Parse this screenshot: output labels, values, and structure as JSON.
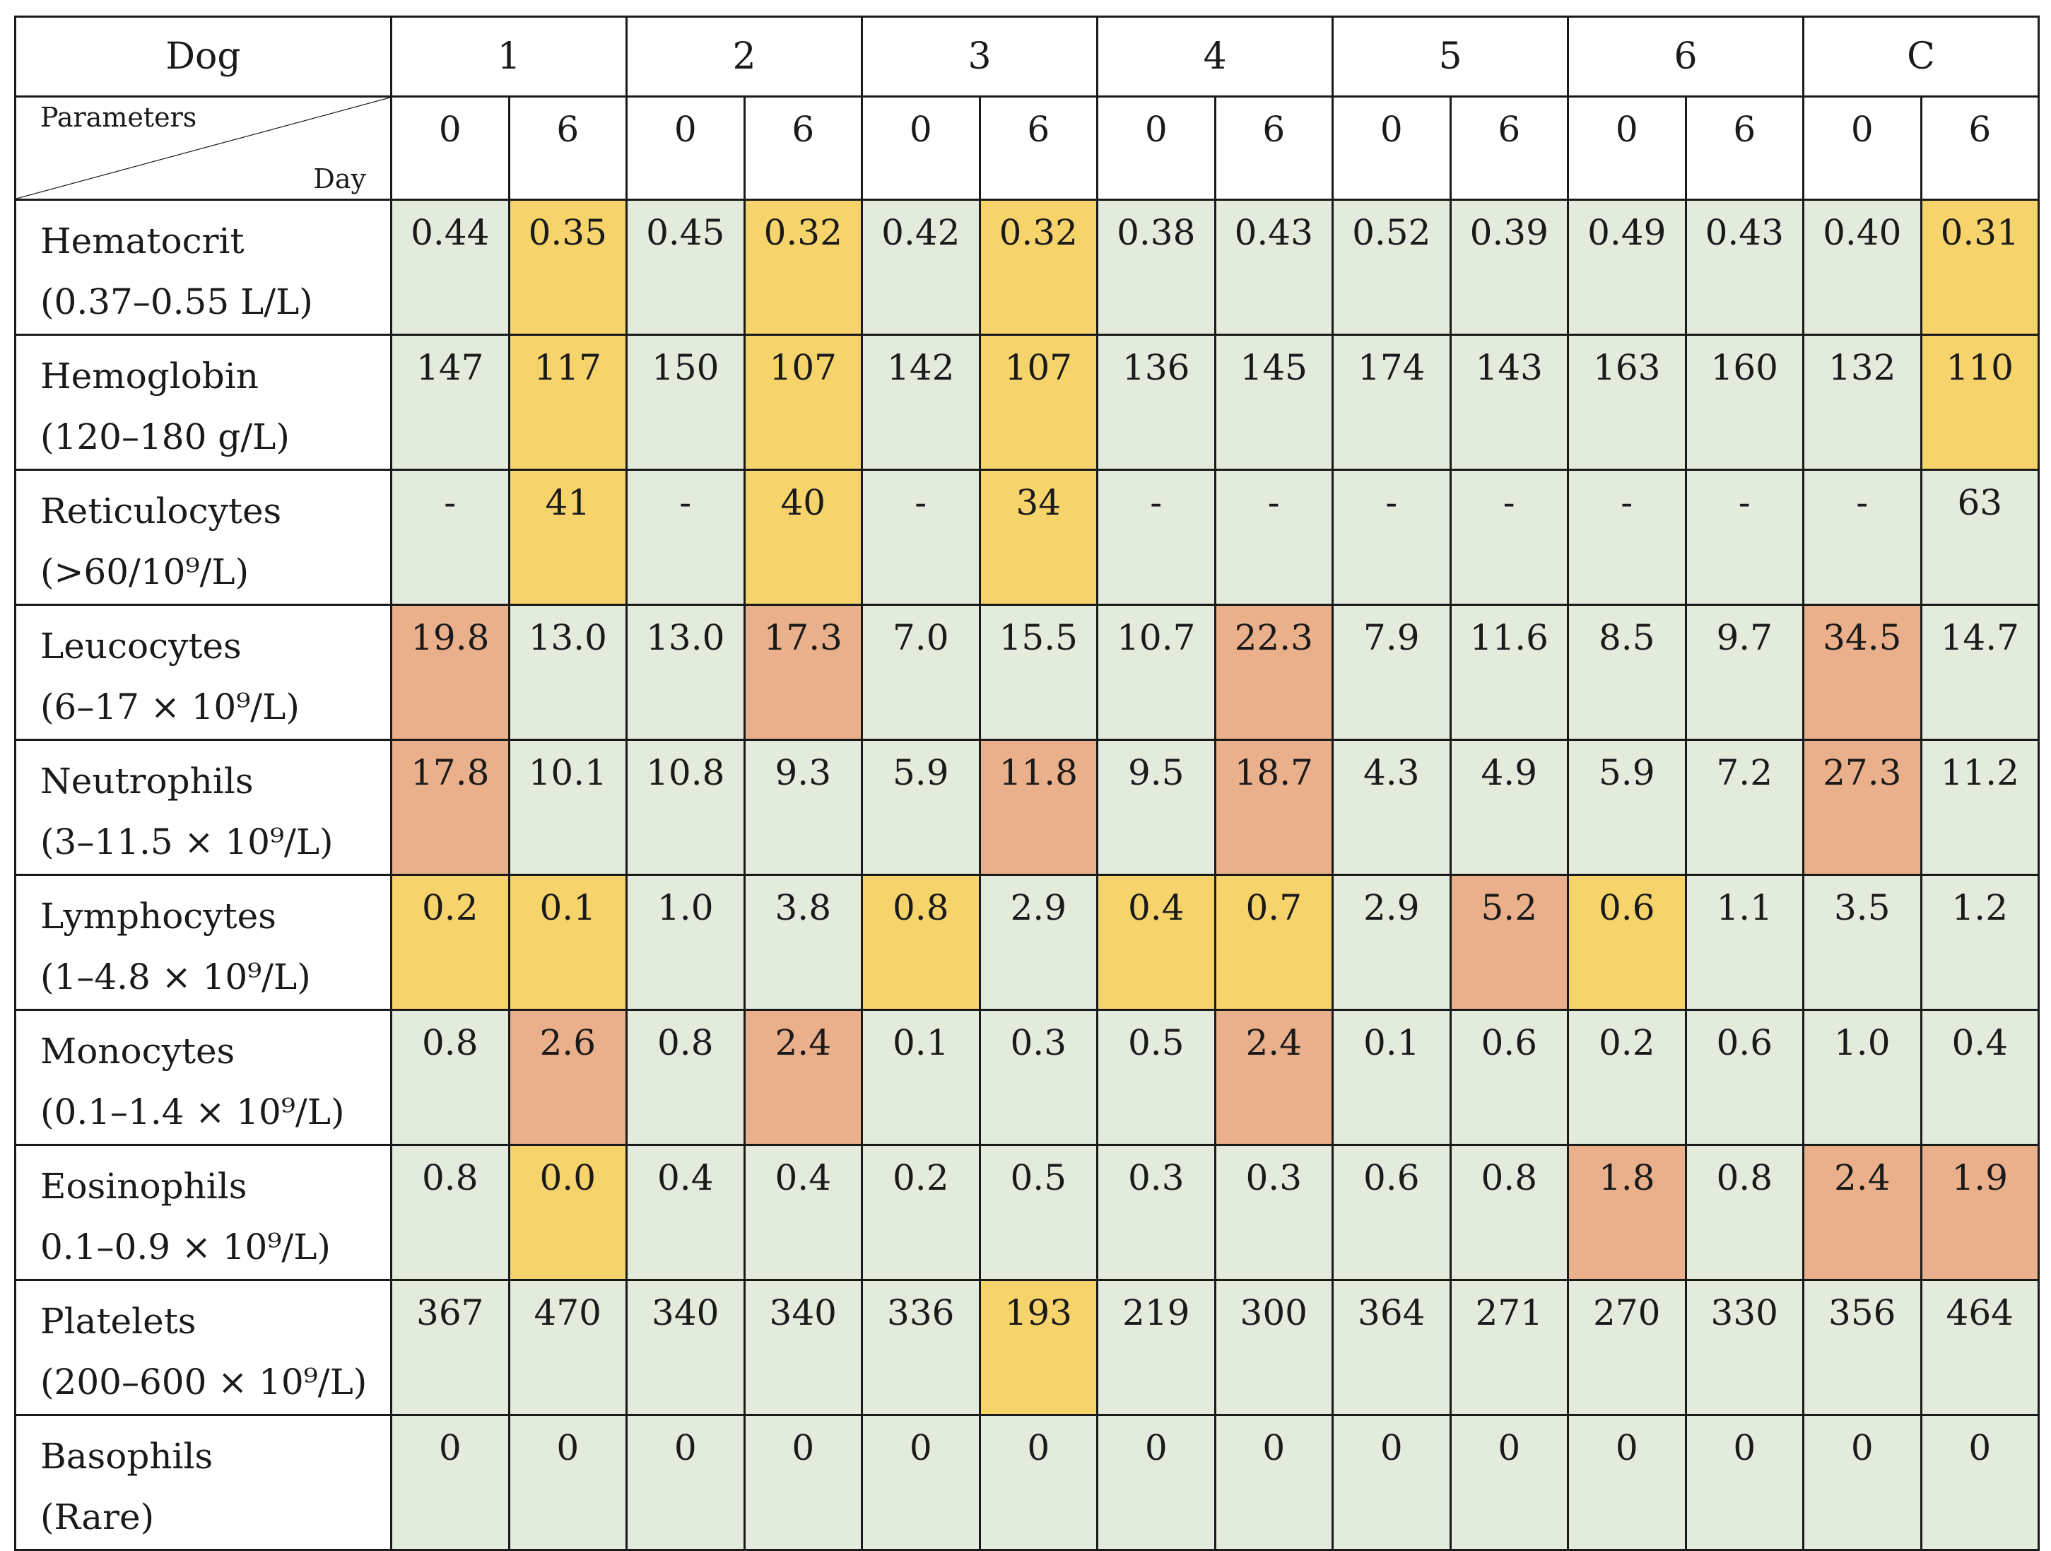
{
  "table": {
    "dog_label": "Dog",
    "dogs": [
      "1",
      "2",
      "3",
      "4",
      "5",
      "6",
      "C"
    ],
    "days": [
      "0",
      "6",
      "0",
      "6",
      "0",
      "6",
      "0",
      "6",
      "0",
      "6",
      "0",
      "6",
      "0",
      "6"
    ],
    "parameters_label": "Parameters",
    "day_label": "Day",
    "colors": {
      "normal": "#e3ecdc",
      "low": "#f7d46b",
      "high": "#eab08b"
    },
    "rows": [
      {
        "name": "Hematocrit",
        "range": "(0.37–0.55 L/L)",
        "values": [
          "0.44",
          "0.35",
          "0.45",
          "0.32",
          "0.42",
          "0.32",
          "0.38",
          "0.43",
          "0.52",
          "0.39",
          "0.49",
          "0.43",
          "0.40",
          "0.31"
        ],
        "flags": [
          "n",
          "l",
          "n",
          "l",
          "n",
          "l",
          "n",
          "n",
          "n",
          "n",
          "n",
          "n",
          "n",
          "l"
        ]
      },
      {
        "name": "Hemoglobin",
        "range": "(120–180 g/L)",
        "values": [
          "147",
          "117",
          "150",
          "107",
          "142",
          "107",
          "136",
          "145",
          "174",
          "143",
          "163",
          "160",
          "132",
          "110"
        ],
        "flags": [
          "n",
          "l",
          "n",
          "l",
          "n",
          "l",
          "n",
          "n",
          "n",
          "n",
          "n",
          "n",
          "n",
          "l"
        ]
      },
      {
        "name": "Reticulocytes",
        "range": "(>60/10⁹/L)",
        "values": [
          "-",
          "41",
          "-",
          "40",
          "-",
          "34",
          "-",
          "-",
          "-",
          "-",
          "-",
          "-",
          "-",
          "63"
        ],
        "flags": [
          "n",
          "l",
          "n",
          "l",
          "n",
          "l",
          "n",
          "n",
          "n",
          "n",
          "n",
          "n",
          "n",
          "n"
        ]
      },
      {
        "name": "Leucocytes",
        "range": "(6–17 × 10⁹/L)",
        "values": [
          "19.8",
          "13.0",
          "13.0",
          "17.3",
          "7.0",
          "15.5",
          "10.7",
          "22.3",
          "7.9",
          "11.6",
          "8.5",
          "9.7",
          "34.5",
          "14.7"
        ],
        "flags": [
          "h",
          "n",
          "n",
          "h",
          "n",
          "n",
          "n",
          "h",
          "n",
          "n",
          "n",
          "n",
          "h",
          "n"
        ]
      },
      {
        "name": "Neutrophils",
        "range": "(3–11.5 × 10⁹/L)",
        "values": [
          "17.8",
          "10.1",
          "10.8",
          "9.3",
          "5.9",
          "11.8",
          "9.5",
          "18.7",
          "4.3",
          "4.9",
          "5.9",
          "7.2",
          "27.3",
          "11.2"
        ],
        "flags": [
          "h",
          "n",
          "n",
          "n",
          "n",
          "h",
          "n",
          "h",
          "n",
          "n",
          "n",
          "n",
          "h",
          "n"
        ]
      },
      {
        "name": "Lymphocytes",
        "range": "(1–4.8 × 10⁹/L)",
        "values": [
          "0.2",
          "0.1",
          "1.0",
          "3.8",
          "0.8",
          "2.9",
          "0.4",
          "0.7",
          "2.9",
          "5.2",
          "0.6",
          "1.1",
          "3.5",
          "1.2"
        ],
        "flags": [
          "l",
          "l",
          "n",
          "n",
          "l",
          "n",
          "l",
          "l",
          "n",
          "h",
          "l",
          "n",
          "n",
          "n"
        ]
      },
      {
        "name": "Monocytes",
        "range": "(0.1–1.4 × 10⁹/L)",
        "values": [
          "0.8",
          "2.6",
          "0.8",
          "2.4",
          "0.1",
          "0.3",
          "0.5",
          "2.4",
          "0.1",
          "0.6",
          "0.2",
          "0.6",
          "1.0",
          "0.4"
        ],
        "flags": [
          "n",
          "h",
          "n",
          "h",
          "n",
          "n",
          "n",
          "h",
          "n",
          "n",
          "n",
          "n",
          "n",
          "n"
        ]
      },
      {
        "name": "Eosinophils",
        "range": "0.1–0.9 × 10⁹/L)",
        "values": [
          "0.8",
          "0.0",
          "0.4",
          "0.4",
          "0.2",
          "0.5",
          "0.3",
          "0.3",
          "0.6",
          "0.8",
          "1.8",
          "0.8",
          "2.4",
          "1.9"
        ],
        "flags": [
          "n",
          "l",
          "n",
          "n",
          "n",
          "n",
          "n",
          "n",
          "n",
          "n",
          "h",
          "n",
          "h",
          "h"
        ]
      },
      {
        "name": "Platelets",
        "range": "(200–600 × 10⁹/L)",
        "values": [
          "367",
          "470",
          "340",
          "340",
          "336",
          "193",
          "219",
          "300",
          "364",
          "271",
          "270",
          "330",
          "356",
          "464"
        ],
        "flags": [
          "n",
          "n",
          "n",
          "n",
          "n",
          "l",
          "n",
          "n",
          "n",
          "n",
          "n",
          "n",
          "n",
          "n"
        ]
      },
      {
        "name": "Basophils",
        "range": "(Rare)",
        "values": [
          "0",
          "0",
          "0",
          "0",
          "0",
          "0",
          "0",
          "0",
          "0",
          "0",
          "0",
          "0",
          "0",
          "0"
        ],
        "flags": [
          "n",
          "n",
          "n",
          "n",
          "n",
          "n",
          "n",
          "n",
          "n",
          "n",
          "n",
          "n",
          "n",
          "n"
        ]
      }
    ]
  }
}
